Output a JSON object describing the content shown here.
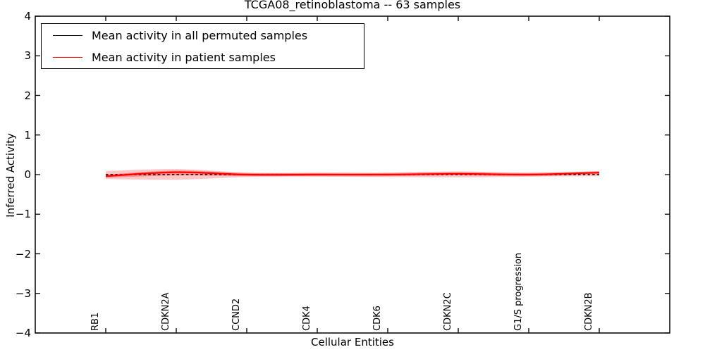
{
  "title": "TCGA08_retinoblastoma -- 63 samples",
  "legend": {
    "items": [
      {
        "label": "Mean activity in all permuted samples",
        "color": "#000000"
      },
      {
        "label": "Mean activity in patient samples",
        "color": "#ff0000"
      }
    ]
  },
  "chart_data": {
    "type": "line",
    "title": "TCGA08_retinoblastoma -- 63 samples",
    "xlabel": "Cellular Entities",
    "ylabel": "Inferred Activity",
    "ylim": [
      -4,
      4
    ],
    "yticks": [
      4,
      3,
      2,
      1,
      0,
      -1,
      -2,
      -3,
      -4
    ],
    "grid": false,
    "legend_position": "upper left",
    "categories": [
      "RB1",
      "CDKN2A",
      "CCND2",
      "CDK4",
      "CDK6",
      "CDKN2C",
      "G1/S progression",
      "CDKN2B"
    ],
    "series": [
      {
        "name": "Mean activity in all permuted samples",
        "color": "#000000",
        "style": "dashed",
        "values": [
          0,
          0,
          0,
          0,
          0,
          0,
          0,
          0
        ]
      },
      {
        "name": "Mean activity in patient samples",
        "color": "#ff0000",
        "style": "solid",
        "values": [
          -0.04,
          0.06,
          0.0,
          0.0,
          0.0,
          0.02,
          0.0,
          0.05
        ]
      }
    ],
    "bands": [
      {
        "name": "patient-std-outer",
        "color": "#ff0000",
        "opacity": 0.22,
        "upper": [
          0.09,
          0.14,
          0.05,
          0.05,
          0.05,
          0.08,
          0.05,
          0.08
        ],
        "lower": [
          -0.11,
          -0.13,
          -0.06,
          -0.05,
          -0.06,
          -0.07,
          -0.05,
          -0.04
        ]
      },
      {
        "name": "patient-std-inner",
        "color": "#ff0000",
        "opacity": 0.3,
        "upper": [
          0.0,
          0.1,
          0.04,
          0.04,
          0.04,
          0.06,
          0.04,
          0.09
        ],
        "lower": [
          -0.08,
          -0.02,
          -0.04,
          -0.04,
          -0.04,
          -0.02,
          -0.04,
          0.01
        ]
      }
    ]
  },
  "geometry_note": "axes frame 50,23 to 950,473; category ticks every 100px from x=150"
}
